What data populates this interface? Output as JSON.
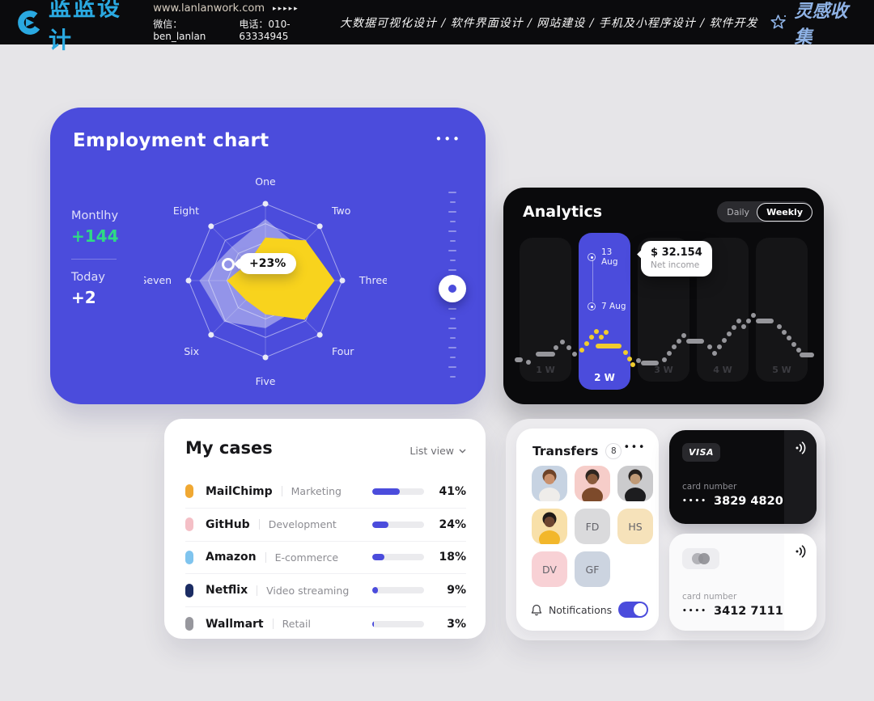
{
  "header": {
    "logo_text": "蓝蓝设计",
    "website": "www.lanlanwork.com",
    "arrows": "▸▸▸▸▸",
    "wechat": "微信：ben_lanlan",
    "phone": "电话：010-63334945",
    "services": "大数据可视化设计 / 软件界面设计 / 网站建设 / 手机及小程序设计 / 软件开发",
    "collect": "灵感收集"
  },
  "colors": {
    "accent": "#4B4CDC",
    "yellow": "#F8D31D",
    "green": "#2FD985",
    "logo_blue": "#2AA9E1",
    "spark_gray": "#96969B",
    "spark_yellow": "#F1CD2D"
  },
  "employment": {
    "title": "Employment chart",
    "menu": "•••",
    "monthly_label": "Montlhy",
    "monthly_value": "+144",
    "today_label": "Today",
    "today_value": "+2",
    "badge": "+23%"
  },
  "analytics": {
    "title": "Analytics",
    "toggle": {
      "daily": "Daily",
      "weekly": "Weekly",
      "selected": "Weekly"
    },
    "marker_top": "13 Aug",
    "marker_bottom": "7 Aug",
    "tooltip_value": "$ 32.154",
    "tooltip_label": "Net income"
  },
  "my_cases": {
    "title": "My cases",
    "view_label": "List view",
    "rows": [
      {
        "name": "MailChimp",
        "category": "Marketing",
        "pct": 41,
        "color": "#F0A832"
      },
      {
        "name": "GitHub",
        "category": "Development",
        "pct": 24,
        "color": "#F4BFC6"
      },
      {
        "name": "Amazon",
        "category": "E-commerce",
        "pct": 18,
        "color": "#7FC4EE"
      },
      {
        "name": "Netflix",
        "category": "Video streaming",
        "pct": 9,
        "color": "#1B2C63"
      },
      {
        "name": "Wallmart",
        "category": "Retail",
        "pct": 3,
        "color": "#97979D"
      }
    ]
  },
  "transfers": {
    "title": "Transfers",
    "badge": "8",
    "menu": "•••",
    "tiles": [
      {
        "type": "photo",
        "bg": "#C7D3E2",
        "skin": "#C9906C",
        "hair": "#6E4328",
        "shirt": "#EFEDEA"
      },
      {
        "type": "photo",
        "bg": "#F6CDC9",
        "skin": "#8A5B3C",
        "hair": "#2E2620",
        "shirt": "#7D4A2B"
      },
      {
        "type": "photo",
        "bg": "#CBCBCD",
        "skin": "#C09A76",
        "hair": "#26211E",
        "shirt": "#1D1D1F"
      },
      {
        "type": "photo",
        "bg": "#F8E0A9",
        "skin": "#6D4630",
        "hair": "#1F1A17",
        "shirt": "#F2B72B"
      },
      {
        "type": "initials",
        "bg": "#DADADC",
        "text": "FD"
      },
      {
        "type": "initials",
        "bg": "#F6E2BA",
        "text": "HS"
      },
      {
        "type": "initials",
        "bg": "#F8D1D5",
        "text": "DV"
      },
      {
        "type": "initials",
        "bg": "#CCD4E0",
        "text": "GF"
      }
    ],
    "notifications_label": "Notifications",
    "notifications_on": true
  },
  "bank_cards": {
    "black": {
      "brand": "VISA",
      "label": "card number",
      "masked": "••••",
      "number": "3829 4820"
    },
    "white": {
      "label": "card number",
      "masked": "••••",
      "number": "3412 7111"
    }
  },
  "chart_data": [
    {
      "type": "radar",
      "title": "Employment chart",
      "categories": [
        "One",
        "Two",
        "Three",
        "Four",
        "Five",
        "Six",
        "Seven",
        "Eight"
      ],
      "rings": [
        1,
        0.74,
        0.5
      ],
      "series": [
        {
          "name": "previous",
          "color": "rgba(236,238,248,0.45)",
          "values": [
            0.8,
            0.62,
            0.55,
            0.55,
            0.62,
            0.76,
            0.86,
            0.62
          ]
        },
        {
          "name": "current",
          "color": "#F8D31D",
          "values": [
            0.56,
            0.74,
            0.9,
            0.72,
            0.44,
            0.36,
            0.5,
            0.32
          ]
        }
      ],
      "annotation": "+23%"
    },
    {
      "type": "line",
      "title": "Analytics weekly net income",
      "categories": [
        "1 W",
        "2 W",
        "3 W",
        "4 W",
        "5 W"
      ],
      "selected_index": 1,
      "markers": [
        "13 Aug",
        "7 Aug"
      ],
      "tooltip": {
        "value": "$ 32.154",
        "label": "Net income"
      },
      "points": [
        [
          14,
          213,
          10
        ],
        [
          28,
          216,
          6
        ],
        [
          40,
          206,
          24
        ],
        [
          62,
          198,
          6
        ],
        [
          70,
          191,
          6
        ],
        [
          78,
          198,
          6
        ],
        [
          85,
          206,
          6
        ],
        [
          94,
          201,
          6
        ],
        [
          100,
          193,
          6
        ],
        [
          106,
          185,
          6
        ],
        [
          112,
          178,
          6
        ],
        [
          118,
          185,
          6
        ],
        [
          124,
          179,
          6
        ],
        [
          114,
          196,
          32
        ],
        [
          148,
          204,
          6
        ],
        [
          153,
          212,
          6
        ],
        [
          157,
          219,
          6
        ],
        [
          164,
          214,
          6
        ],
        [
          170,
          217,
          22
        ],
        [
          196,
          213,
          6
        ],
        [
          202,
          205,
          6
        ],
        [
          208,
          197,
          6
        ],
        [
          214,
          190,
          6
        ],
        [
          220,
          183,
          6
        ],
        [
          226,
          190,
          22
        ],
        [
          252,
          197,
          6
        ],
        [
          258,
          205,
          6
        ],
        [
          264,
          197,
          6
        ],
        [
          270,
          189,
          6
        ],
        [
          276,
          181,
          6
        ],
        [
          282,
          173,
          6
        ],
        [
          288,
          165,
          6
        ],
        [
          294,
          172,
          6
        ],
        [
          300,
          165,
          6
        ],
        [
          306,
          158,
          6
        ],
        [
          312,
          165,
          22
        ],
        [
          338,
          172,
          6
        ],
        [
          344,
          179,
          6
        ],
        [
          350,
          186,
          6
        ],
        [
          356,
          194,
          6
        ],
        [
          362,
          201,
          6
        ],
        [
          366,
          207,
          18
        ]
      ]
    },
    {
      "type": "bar",
      "title": "My cases completion",
      "categories": [
        "MailChimp",
        "GitHub",
        "Amazon",
        "Netflix",
        "Wallmart"
      ],
      "values": [
        41,
        24,
        18,
        9,
        3
      ],
      "unit": "%"
    }
  ]
}
